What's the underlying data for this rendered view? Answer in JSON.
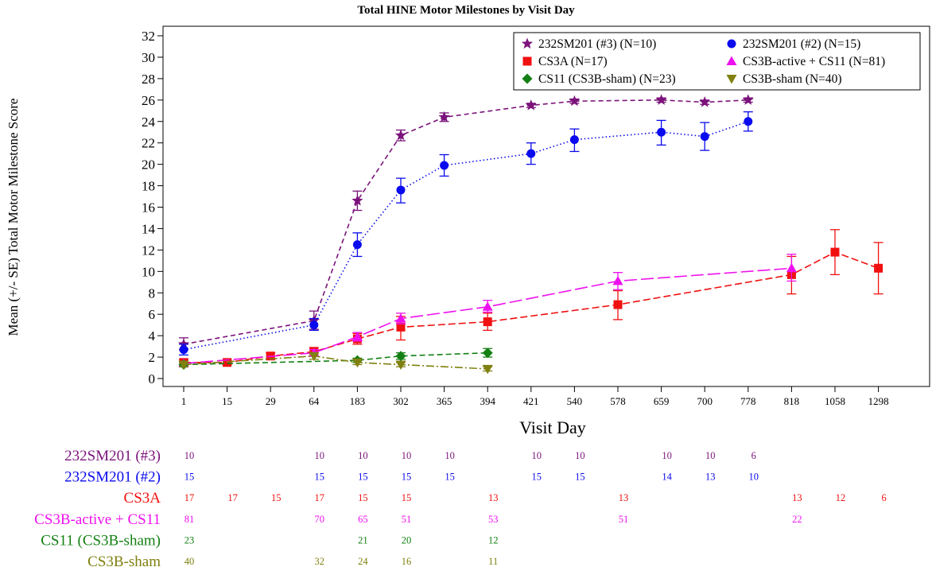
{
  "chart_data": {
    "type": "line",
    "title": "Total HINE Motor Milestones by Visit Day",
    "xlabel": "Visit Day",
    "ylabel": "Mean (+/- SE) Total Motor Milestone Score",
    "categories": [
      "1",
      "15",
      "29",
      "64",
      "183",
      "302",
      "365",
      "394",
      "421",
      "540",
      "578",
      "659",
      "700",
      "778",
      "818",
      "1058",
      "1298"
    ],
    "ylim": [
      0,
      32
    ],
    "yticks": [
      0,
      2,
      4,
      6,
      8,
      10,
      12,
      14,
      16,
      18,
      20,
      22,
      24,
      26,
      28,
      30,
      32
    ],
    "legend_position": "top-right",
    "series": [
      {
        "name": "232SM201 (#3)",
        "legend_label": "232SM201 (#3) (N=10)",
        "color": "#7b137b",
        "marker": "star",
        "dash": "6,4",
        "points": [
          {
            "x": "1",
            "y": 3.2,
            "lo": 2.7,
            "hi": 3.8
          },
          {
            "x": "64",
            "y": 5.4,
            "lo": 4.6,
            "hi": 6.3
          },
          {
            "x": "183",
            "y": 16.6,
            "lo": 15.7,
            "hi": 17.5
          },
          {
            "x": "302",
            "y": 22.7,
            "lo": 22.2,
            "hi": 23.2
          },
          {
            "x": "365",
            "y": 24.4,
            "lo": 24.0,
            "hi": 24.8
          },
          {
            "x": "421",
            "y": 25.5,
            "lo": 25.3,
            "hi": 25.7
          },
          {
            "x": "540",
            "y": 25.9,
            "lo": 25.7,
            "hi": 26.1
          },
          {
            "x": "659",
            "y": 26.0,
            "lo": 25.8,
            "hi": 26.2
          },
          {
            "x": "700",
            "y": 25.8,
            "lo": 25.6,
            "hi": 26.0
          },
          {
            "x": "778",
            "y": 26.0,
            "lo": 25.8,
            "hi": 26.2
          }
        ]
      },
      {
        "name": "232SM201 (#2)",
        "legend_label": "232SM201 (#2) (N=15)",
        "color": "#0a0aee",
        "marker": "circle",
        "dash": "1.5,3",
        "points": [
          {
            "x": "1",
            "y": 2.7,
            "lo": 2.2,
            "hi": 3.2
          },
          {
            "x": "64",
            "y": 5.0,
            "lo": 4.5,
            "hi": 5.6
          },
          {
            "x": "183",
            "y": 12.5,
            "lo": 11.4,
            "hi": 13.6
          },
          {
            "x": "302",
            "y": 17.6,
            "lo": 16.4,
            "hi": 18.7
          },
          {
            "x": "365",
            "y": 19.9,
            "lo": 18.9,
            "hi": 20.9
          },
          {
            "x": "421",
            "y": 21.0,
            "lo": 20.0,
            "hi": 22.0
          },
          {
            "x": "540",
            "y": 22.3,
            "lo": 21.2,
            "hi": 23.3
          },
          {
            "x": "659",
            "y": 23.0,
            "lo": 21.8,
            "hi": 24.1
          },
          {
            "x": "700",
            "y": 22.6,
            "lo": 21.3,
            "hi": 23.9
          },
          {
            "x": "778",
            "y": 24.0,
            "lo": 23.1,
            "hi": 24.9
          }
        ]
      },
      {
        "name": "CS3A",
        "legend_label": "CS3A (N=17)",
        "color": "#f01010",
        "marker": "square",
        "dash": "9,4",
        "points": [
          {
            "x": "1",
            "y": 1.5,
            "lo": 1.2,
            "hi": 1.8
          },
          {
            "x": "15",
            "y": 1.5,
            "lo": 1.3,
            "hi": 1.7
          },
          {
            "x": "29",
            "y": 2.1,
            "lo": 1.8,
            "hi": 2.4
          },
          {
            "x": "64",
            "y": 2.5,
            "lo": 2.1,
            "hi": 2.9
          },
          {
            "x": "183",
            "y": 3.7,
            "lo": 3.2,
            "hi": 4.2
          },
          {
            "x": "302",
            "y": 4.8,
            "lo": 3.6,
            "hi": 5.8
          },
          {
            "x": "394",
            "y": 5.3,
            "lo": 4.5,
            "hi": 6.1
          },
          {
            "x": "578",
            "y": 6.9,
            "lo": 5.5,
            "hi": 8.2
          },
          {
            "x": "818",
            "y": 9.7,
            "lo": 7.9,
            "hi": 11.4
          },
          {
            "x": "1058",
            "y": 11.8,
            "lo": 9.7,
            "hi": 13.9
          },
          {
            "x": "1298",
            "y": 10.3,
            "lo": 7.9,
            "hi": 12.7
          }
        ]
      },
      {
        "name": "CS3B-active + CS11",
        "legend_label": "CS3B-active + CS11 (N=81)",
        "color": "#ee10ee",
        "marker": "triangle-up",
        "dash": "16,5",
        "points": [
          {
            "x": "1",
            "y": 1.4,
            "lo": 1.2,
            "hi": 1.6
          },
          {
            "x": "64",
            "y": 2.4,
            "lo": 2.1,
            "hi": 2.7
          },
          {
            "x": "183",
            "y": 3.9,
            "lo": 3.5,
            "hi": 4.3
          },
          {
            "x": "302",
            "y": 5.6,
            "lo": 5.1,
            "hi": 6.1
          },
          {
            "x": "394",
            "y": 6.7,
            "lo": 6.2,
            "hi": 7.3
          },
          {
            "x": "578",
            "y": 9.1,
            "lo": 8.3,
            "hi": 9.9
          },
          {
            "x": "818",
            "y": 10.3,
            "lo": 9.1,
            "hi": 11.6
          }
        ]
      },
      {
        "name": "CS11 (CS3B-sham)",
        "legend_label": "CS11 (CS3B-sham) (N=23)",
        "color": "#138013",
        "marker": "diamond",
        "dash": "7,4",
        "points": [
          {
            "x": "1",
            "y": 1.3,
            "lo": 1.1,
            "hi": 1.5
          },
          {
            "x": "183",
            "y": 1.7,
            "lo": 1.5,
            "hi": 1.9
          },
          {
            "x": "302",
            "y": 2.1,
            "lo": 1.8,
            "hi": 2.4
          },
          {
            "x": "394",
            "y": 2.4,
            "lo": 2.0,
            "hi": 2.8
          }
        ]
      },
      {
        "name": "CS3B-sham",
        "legend_label": "CS3B-sham (N=40)",
        "color": "#808010",
        "marker": "triangle-down",
        "dash": "10,3,2,3",
        "points": [
          {
            "x": "1",
            "y": 1.3,
            "lo": 1.1,
            "hi": 1.5
          },
          {
            "x": "64",
            "y": 2.1,
            "lo": 1.8,
            "hi": 2.4
          },
          {
            "x": "183",
            "y": 1.5,
            "lo": 1.3,
            "hi": 1.7
          },
          {
            "x": "302",
            "y": 1.3,
            "lo": 1.1,
            "hi": 1.5
          },
          {
            "x": "394",
            "y": 0.9,
            "lo": 0.7,
            "hi": 1.1
          }
        ]
      }
    ],
    "at_risk_table": {
      "rows": [
        {
          "label": "232SM201 (#3)",
          "color": "#7b137b",
          "counts": {
            "1": "10",
            "64": "10",
            "183": "10",
            "302": "10",
            "365": "10",
            "421": "10",
            "540": "10",
            "659": "10",
            "700": "10",
            "778": "6"
          }
        },
        {
          "label": "232SM201 (#2)",
          "color": "#0a0aee",
          "counts": {
            "1": "15",
            "64": "15",
            "183": "15",
            "302": "15",
            "365": "15",
            "421": "15",
            "540": "15",
            "659": "14",
            "700": "13",
            "778": "10"
          }
        },
        {
          "label": "CS3A",
          "color": "#f01010",
          "counts": {
            "1": "17",
            "15": "17",
            "29": "15",
            "64": "17",
            "183": "15",
            "302": "15",
            "394": "13",
            "578": "13",
            "818": "13",
            "1058": "12",
            "1298": "6"
          }
        },
        {
          "label": "CS3B-active + CS11",
          "color": "#ee10ee",
          "counts": {
            "1": "81",
            "64": "70",
            "183": "65",
            "302": "51",
            "394": "53",
            "578": "51",
            "818": "22"
          }
        },
        {
          "label": "CS11 (CS3B-sham)",
          "color": "#138013",
          "counts": {
            "1": "23",
            "183": "21",
            "302": "20",
            "394": "12"
          }
        },
        {
          "label": "CS3B-sham",
          "color": "#808010",
          "counts": {
            "1": "40",
            "64": "32",
            "183": "24",
            "302": "16",
            "394": "11"
          }
        }
      ]
    }
  }
}
